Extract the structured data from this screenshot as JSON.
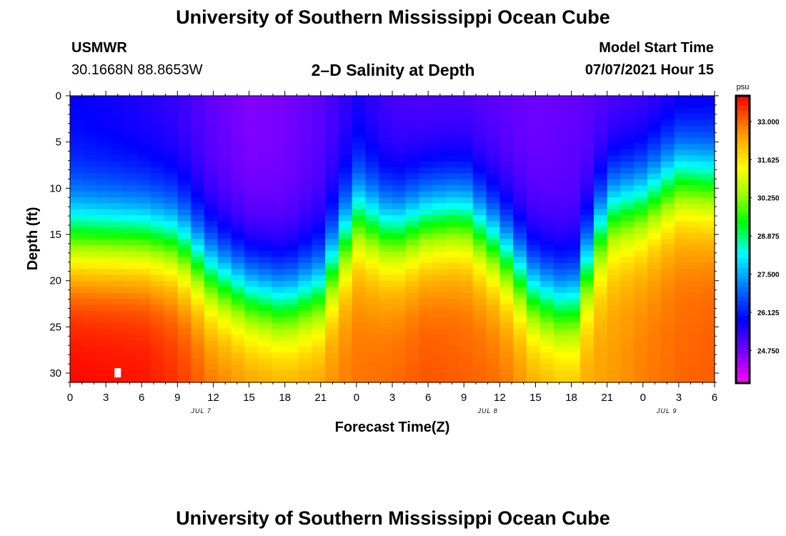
{
  "page": {
    "title_top": "University of Southern Mississippi Ocean Cube",
    "title_bottom": "University of Southern Mississippi Ocean Cube",
    "station_name": "USMWR",
    "coordinates": "30.1668N  88.8653W",
    "plot_title": "2–D Salinity at Depth",
    "model_label": "Model Start Time",
    "model_time": "07/07/2021 Hour 15"
  },
  "chart_data": {
    "type": "heatmap",
    "title": "2–D Salinity at Depth",
    "xlabel": "Forecast Time(Z)",
    "ylabel": "Depth (ft)",
    "x_range_hours": [
      0,
      54
    ],
    "y_range_ft": [
      0,
      31
    ],
    "y_ticks": [
      "0",
      "5",
      "10",
      "15",
      "20",
      "25",
      "30"
    ],
    "y_tick_values": [
      0,
      5,
      10,
      15,
      20,
      25,
      30
    ],
    "x_tick_labels": [
      "0",
      "3",
      "6",
      "9",
      "12",
      "15",
      "18",
      "21",
      "0",
      "3",
      "6",
      "9",
      "12",
      "15",
      "18",
      "21",
      "0",
      "3",
      "6"
    ],
    "date_labels": [
      {
        "label": "JUL 7",
        "hour": 11
      },
      {
        "label": "JUL 8",
        "hour": 35
      },
      {
        "label": "JUL 9",
        "hour": 50
      }
    ],
    "colorbar": {
      "unit": "psu",
      "min": 23.6,
      "max": 33.9,
      "tick_values": [
        33.0,
        31.625,
        30.25,
        28.875,
        27.5,
        26.125,
        24.75
      ],
      "tick_labels": [
        "33.000",
        "31.625",
        "30.250",
        "28.875",
        "27.500",
        "26.125",
        "24.750"
      ]
    },
    "profile_hours": [
      0,
      6,
      9,
      12,
      15,
      18,
      21,
      24,
      27,
      30,
      33,
      36,
      39,
      42,
      45,
      48,
      51,
      54
    ],
    "halocline_depth_ft": [
      15.5,
      15.5,
      16.0,
      19.5,
      21.5,
      22.5,
      21.0,
      13.0,
      15.0,
      13.5,
      13.0,
      16.5,
      21.5,
      23.0,
      12.5,
      11.5,
      9.0,
      9.5
    ],
    "surface_salinity_psu": [
      25.8,
      25.5,
      25.3,
      24.9,
      24.6,
      24.7,
      25.0,
      25.5,
      25.1,
      25.0,
      25.0,
      24.9,
      24.8,
      24.9,
      25.0,
      25.1,
      25.3,
      25.4
    ],
    "bottom_salinity_psu": [
      33.9,
      33.8,
      33.5,
      33.0,
      32.8,
      32.7,
      32.7,
      32.9,
      33.0,
      33.2,
      33.1,
      33.0,
      32.6,
      32.4,
      32.5,
      32.8,
      33.0,
      33.1
    ],
    "marker": {
      "hour": 4,
      "depth_ft": 30
    }
  }
}
